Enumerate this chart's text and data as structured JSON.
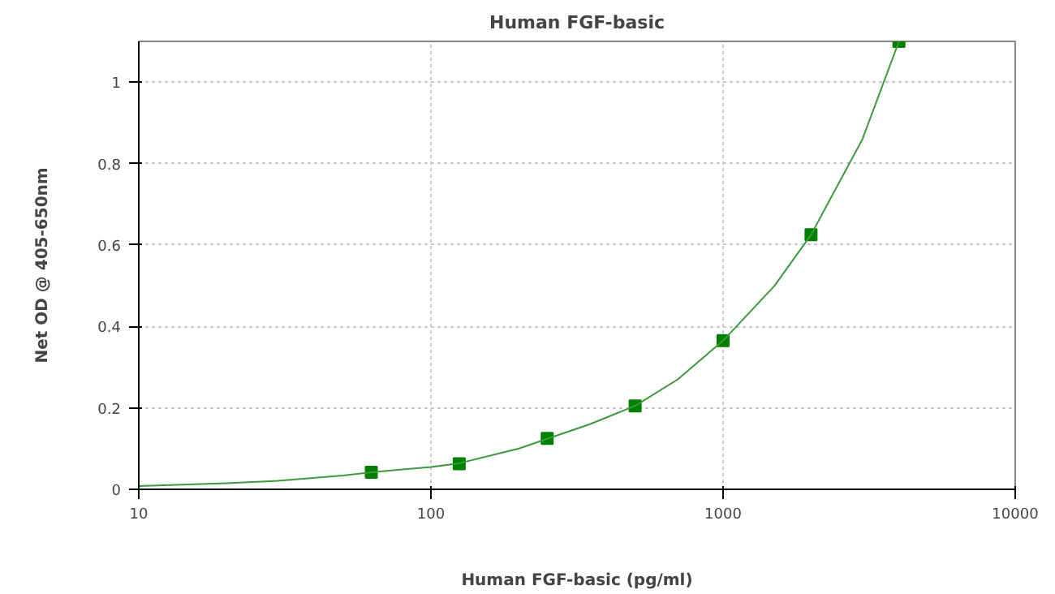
{
  "chart_data": {
    "type": "scatter",
    "title": "Human FGF-basic",
    "xlabel": "Human FGF-basic (pg/ml)",
    "ylabel": "Net OD @ 405-650nm",
    "log": "x",
    "xlim": [
      10,
      10000
    ],
    "xticks": [
      10,
      100,
      1000,
      10000
    ],
    "ylim": [
      0,
      1.1
    ],
    "yticks": [
      0,
      0.2,
      0.4,
      0.6,
      0.8,
      1
    ],
    "grid": true,
    "series": [
      {
        "marker": "square",
        "color": "#008000",
        "x": [
          62.5,
          125,
          250,
          500,
          1000,
          2000,
          4000
        ],
        "values": [
          0.042,
          0.063,
          0.125,
          0.205,
          0.365,
          0.625,
          1.1
        ]
      },
      {
        "type": "line",
        "marker": "none",
        "color": "#3a9a3a",
        "x": [
          10,
          20,
          30,
          50,
          62.5,
          100,
          125,
          200,
          250,
          350,
          500,
          700,
          1000,
          1500,
          2000,
          3000,
          4000
        ],
        "values": [
          0.008,
          0.015,
          0.021,
          0.034,
          0.042,
          0.055,
          0.064,
          0.1,
          0.124,
          0.16,
          0.205,
          0.27,
          0.365,
          0.5,
          0.625,
          0.86,
          1.1
        ]
      }
    ]
  }
}
